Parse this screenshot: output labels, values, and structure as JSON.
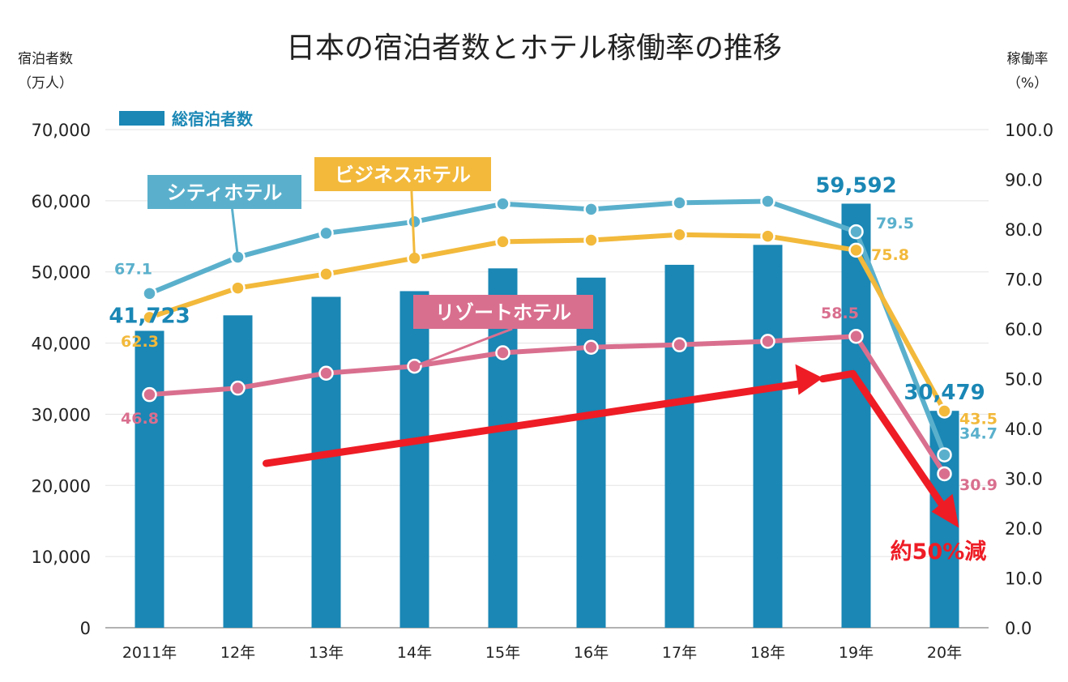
{
  "chart_data": {
    "type": "bar",
    "title": "日本の宿泊者数とホテル稼働率の推移",
    "categories": [
      "2011年",
      "12年",
      "13年",
      "14年",
      "15年",
      "16年",
      "17年",
      "18年",
      "19年",
      "20年"
    ],
    "left_axis": {
      "label": "宿泊者数",
      "unit": "（万人）",
      "ylim": [
        0,
        70000
      ],
      "ticks": [
        "0",
        "10,000",
        "20,000",
        "30,000",
        "40,000",
        "50,000",
        "60,000",
        "70,000"
      ]
    },
    "right_axis": {
      "label": "稼働率",
      "unit": "（%）",
      "ylim": [
        0,
        100
      ],
      "ticks": [
        "0.0",
        "10.0",
        "20.0",
        "30.0",
        "40.0",
        "50.0",
        "60.0",
        "70.0",
        "80.0",
        "90.0",
        "100.0"
      ]
    },
    "bars": {
      "name": "総宿泊者数",
      "color": "#1a87b5",
      "values": [
        41723,
        43900,
        46500,
        47300,
        50500,
        49200,
        51000,
        53800,
        59592,
        30479
      ],
      "labels": [
        {
          "index": 0,
          "text": "41,723"
        },
        {
          "index": 8,
          "text": "59,592"
        },
        {
          "index": 9,
          "text": "30,479"
        }
      ]
    },
    "series": [
      {
        "name": "シティホテル",
        "type": "line",
        "axis": "right",
        "color": "#5ab0cc",
        "values": [
          67.1,
          74.4,
          79.2,
          81.5,
          85.1,
          84.0,
          85.3,
          85.6,
          79.5,
          34.7
        ],
        "labels": [
          {
            "index": 0,
            "text": "67.1"
          },
          {
            "index": 8,
            "text": "79.5"
          },
          {
            "index": 9,
            "text": "34.7"
          }
        ]
      },
      {
        "name": "ビジネスホテル",
        "type": "line",
        "axis": "right",
        "color": "#f2b93b",
        "values": [
          62.3,
          68.2,
          71.0,
          74.2,
          77.5,
          77.8,
          78.9,
          78.6,
          75.8,
          43.5
        ],
        "labels": [
          {
            "index": 0,
            "text": "62.3"
          },
          {
            "index": 8,
            "text": "75.8"
          },
          {
            "index": 9,
            "text": "43.5"
          }
        ]
      },
      {
        "name": "リゾートホテル",
        "type": "line",
        "axis": "right",
        "color": "#d96f8f",
        "values": [
          46.8,
          48.1,
          51.1,
          52.5,
          55.2,
          56.3,
          56.8,
          57.5,
          58.5,
          30.9
        ],
        "labels": [
          {
            "index": 0,
            "text": "46.8"
          },
          {
            "index": 8,
            "text": "58.5"
          },
          {
            "index": 9,
            "text": "30.9"
          }
        ]
      }
    ],
    "annotations": [
      {
        "text": "約50%減",
        "color": "#ee1c25"
      }
    ],
    "grid": true,
    "legend": "top-left"
  }
}
